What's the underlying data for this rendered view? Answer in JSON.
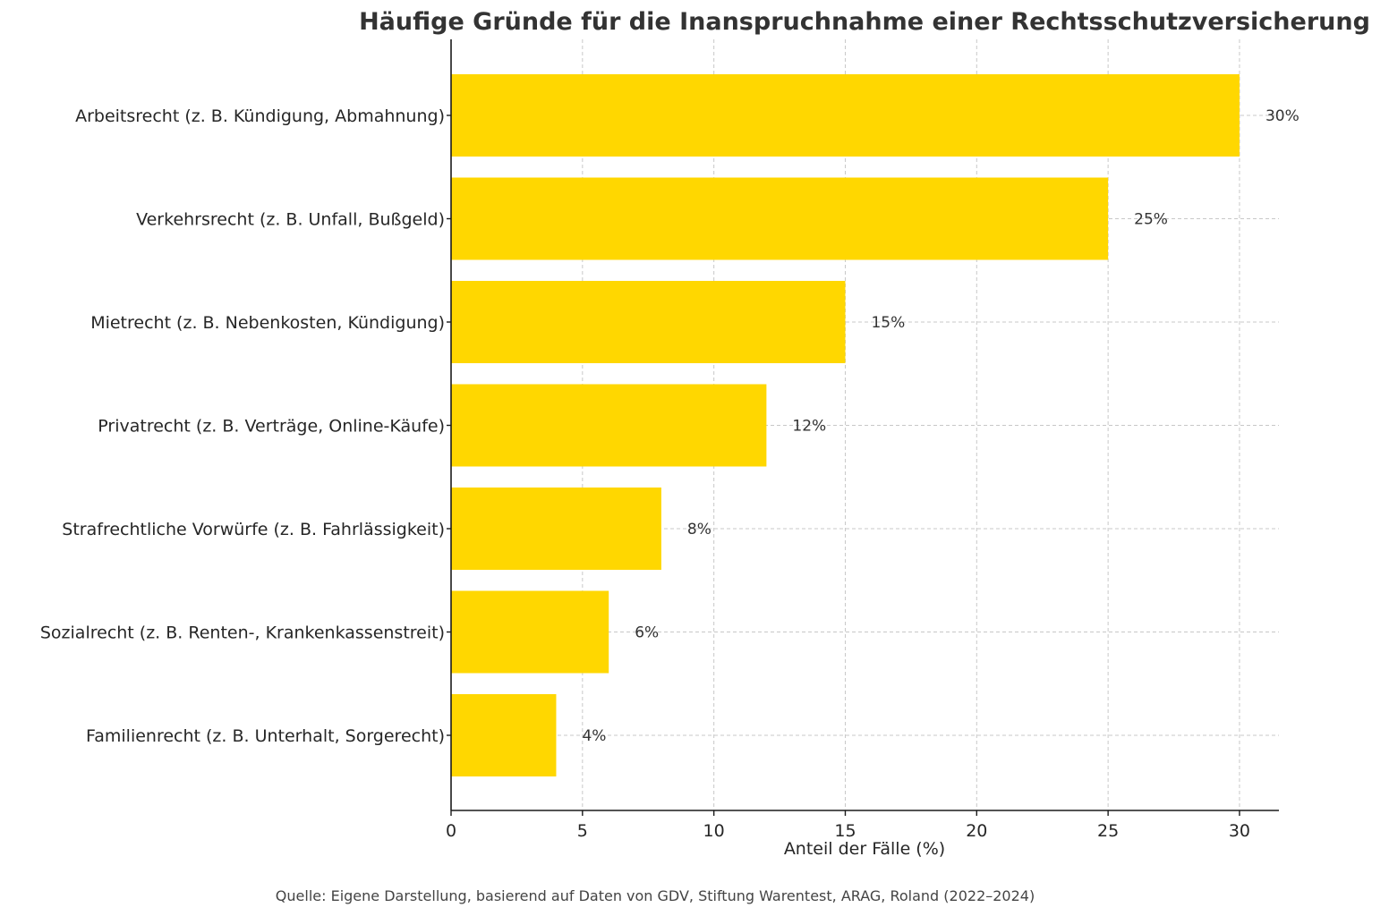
{
  "chart_data": {
    "type": "bar",
    "orientation": "horizontal",
    "title": "Häufige Gründe für die Inanspruchnahme einer Rechtsschutzversicherung",
    "xlabel": "Anteil der Fälle (%)",
    "ylabel": "",
    "source": "Quelle: Eigene Darstellung, basierend auf Daten von GDV, Stiftung Warentest, ARAG, Roland (2022–2024)",
    "categories": [
      "Arbeitsrecht (z. B. Kündigung, Abmahnung)",
      "Verkehrsrecht (z. B. Unfall, Bußgeld)",
      "Mietrecht (z. B. Nebenkosten, Kündigung)",
      "Privatrecht (z. B. Verträge, Online-Käufe)",
      "Strafrechtliche Vorwürfe (z. B. Fahrlässigkeit)",
      "Sozialrecht (z. B. Renten-, Krankenkassenstreit)",
      "Familienrecht (z. B. Unterhalt, Sorgerecht)"
    ],
    "values": [
      30,
      25,
      15,
      12,
      8,
      6,
      4
    ],
    "value_labels": [
      "30%",
      "25%",
      "15%",
      "12%",
      "8%",
      "6%",
      "4%"
    ],
    "x_ticks": [
      0,
      5,
      10,
      15,
      20,
      25,
      30
    ],
    "x_tick_labels": [
      "0",
      "5",
      "10",
      "15",
      "20",
      "25",
      "30"
    ],
    "xlim": [
      0,
      31.5
    ],
    "grid": true,
    "bar_color": "#FFD700"
  }
}
